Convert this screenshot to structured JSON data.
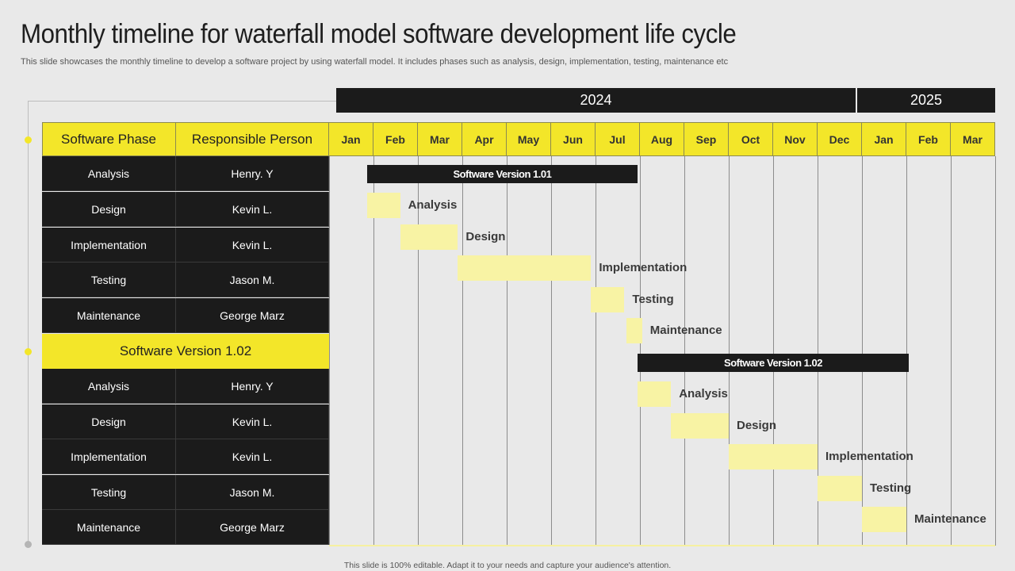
{
  "title": "Monthly timeline for waterfall model software development life cycle",
  "subtitle": "This slide showcases the monthly timeline to develop a software project by using waterfall model. It includes phases such as analysis, design, implementation, testing, maintenance etc",
  "footer": "This slide is 100% editable. Adapt it to your needs and capture your audience's attention.",
  "years": [
    "2024",
    "2025"
  ],
  "headers": {
    "phase": "Software Phase",
    "person": "Responsible Person"
  },
  "months": [
    "Jan",
    "Feb",
    "Mar",
    "Apr",
    "May",
    "Jun",
    "Jul",
    "Aug",
    "Sep",
    "Oct",
    "Nov",
    "Dec",
    "Jan",
    "Feb",
    "Mar"
  ],
  "section_label": "Software Version 1.02",
  "versions": [
    {
      "bar_label": "Software Version 1.01",
      "start_month": 0.85,
      "end_month": 6.95,
      "rows": [
        {
          "phase": "Analysis",
          "person": "Henry. Y",
          "label": "Analysis",
          "start": 0.85,
          "end": 1.6
        },
        {
          "phase": "Design",
          "person": "Kevin L.",
          "label": "Design",
          "start": 1.6,
          "end": 2.9
        },
        {
          "phase": "Implementation",
          "person": "Kevin L.",
          "label": "Implementation",
          "start": 2.9,
          "end": 5.9
        },
        {
          "phase": "Testing",
          "person": "Jason M.",
          "label": "Testing",
          "start": 5.9,
          "end": 6.65
        },
        {
          "phase": "Maintenance",
          "person": "George Marz",
          "label": "Maintenance",
          "start": 6.7,
          "end": 7.05
        }
      ]
    },
    {
      "bar_label": "Software Version 1.02",
      "start_month": 6.95,
      "end_month": 13.05,
      "rows": [
        {
          "phase": "Analysis",
          "person": "Henry. Y",
          "label": "Analysis",
          "start": 6.95,
          "end": 7.7
        },
        {
          "phase": "Design",
          "person": "Kevin L.",
          "label": "Design",
          "start": 7.7,
          "end": 9.0
        },
        {
          "phase": "Implementation",
          "person": "Kevin L.",
          "label": "Implementation",
          "start": 9.0,
          "end": 11.0
        },
        {
          "phase": "Testing",
          "person": "Jason M.",
          "label": "Testing",
          "start": 11.0,
          "end": 12.0
        },
        {
          "phase": "Maintenance",
          "person": "George Marz",
          "label": "Maintenance",
          "start": 12.0,
          "end": 13.0
        }
      ]
    }
  ],
  "colors": {
    "accent": "#f3e629",
    "dark": "#1b1b1b",
    "phase_bar": "#f8f3a4",
    "background": "#e9e9e9"
  }
}
